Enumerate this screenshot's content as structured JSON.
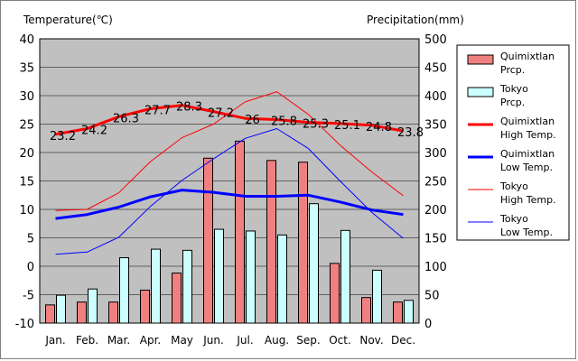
{
  "chart_data": {
    "type": "bar",
    "title": "",
    "left_axis_label": "Temperature(℃)",
    "right_axis_label": "Precipitation(mm)",
    "categories": [
      "Jan.",
      "Feb.",
      "Mar.",
      "Apr.",
      "May",
      "Jun.",
      "Jul.",
      "Aug.",
      "Sep.",
      "Oct.",
      "Nov.",
      "Dec."
    ],
    "temp_axis": {
      "min": -10,
      "max": 40,
      "step": 5,
      "ticks": [
        "40",
        "35",
        "30",
        "25",
        "20",
        "15",
        "10",
        "5",
        "0",
        "-5",
        "-10"
      ]
    },
    "precip_axis": {
      "min": 0,
      "max": 500,
      "step": 50,
      "ticks": [
        "500",
        "450",
        "400",
        "350",
        "300",
        "250",
        "200",
        "150",
        "100",
        "50",
        "0"
      ]
    },
    "series": [
      {
        "name": "Quimixtlan Prcp.",
        "kind": "bar",
        "axis": "precip",
        "color": "#f08080",
        "values": [
          32,
          37,
          37,
          58,
          88,
          290,
          320,
          286,
          283,
          105,
          45,
          37
        ]
      },
      {
        "name": "Tokyo Prcp.",
        "kind": "bar",
        "axis": "precip",
        "color": "#ccffff",
        "values": [
          49,
          60,
          115,
          130,
          128,
          165,
          162,
          155,
          210,
          163,
          93,
          40
        ]
      },
      {
        "name": "Quimixtlan High Temp.",
        "kind": "line",
        "axis": "temp",
        "color": "#ff0000",
        "width": 3,
        "values": [
          23.2,
          24.2,
          26.3,
          27.7,
          28.3,
          27.2,
          26,
          25.8,
          25.3,
          25.1,
          24.8,
          23.8
        ],
        "labels": [
          "23.2",
          "24.2",
          "26.3",
          "27.7",
          "28.3",
          "27.2",
          "26",
          "25.8",
          "25.3",
          "25.1",
          "24.8",
          "23.8"
        ]
      },
      {
        "name": "Quimixtlan Low Temp.",
        "kind": "line",
        "axis": "temp",
        "color": "#0000ff",
        "width": 3,
        "values": [
          8.4,
          9.1,
          10.4,
          12.2,
          13.4,
          13.0,
          12.3,
          12.3,
          12.5,
          11.3,
          9.9,
          9.1
        ]
      },
      {
        "name": "Tokyo High Temp.",
        "kind": "line",
        "axis": "temp",
        "color": "#ff0000",
        "width": 1,
        "values": [
          9.8,
          10.0,
          12.9,
          18.4,
          22.6,
          25.0,
          28.9,
          30.7,
          26.7,
          21.3,
          16.6,
          12.4
        ]
      },
      {
        "name": "Tokyo Low Temp.",
        "kind": "line",
        "axis": "temp",
        "color": "#0000ff",
        "width": 1,
        "values": [
          2.1,
          2.5,
          5.1,
          10.5,
          15.1,
          18.9,
          22.5,
          24.2,
          20.7,
          15.0,
          9.5,
          4.9
        ]
      }
    ],
    "legend": [
      {
        "label_line1": "Quimixtlan",
        "label_line2": "Prcp.",
        "type": "bar",
        "color": "#f08080"
      },
      {
        "label_line1": "Tokyo",
        "label_line2": "Prcp.",
        "type": "bar",
        "color": "#ccffff"
      },
      {
        "label_line1": "Quimixtlan",
        "label_line2": "High Temp.",
        "type": "line",
        "color": "#ff0000",
        "width": 3
      },
      {
        "label_line1": "Quimixtlan",
        "label_line2": "Low Temp.",
        "type": "line",
        "color": "#0000ff",
        "width": 3
      },
      {
        "label_line1": "Tokyo",
        "label_line2": "High Temp.",
        "type": "line",
        "color": "#ff0000",
        "width": 1
      },
      {
        "label_line1": "Tokyo",
        "label_line2": "Low Temp.",
        "type": "line",
        "color": "#0000ff",
        "width": 1
      }
    ],
    "legend_placement": "right",
    "grid": true,
    "plot_background": "#c0c0c0"
  }
}
